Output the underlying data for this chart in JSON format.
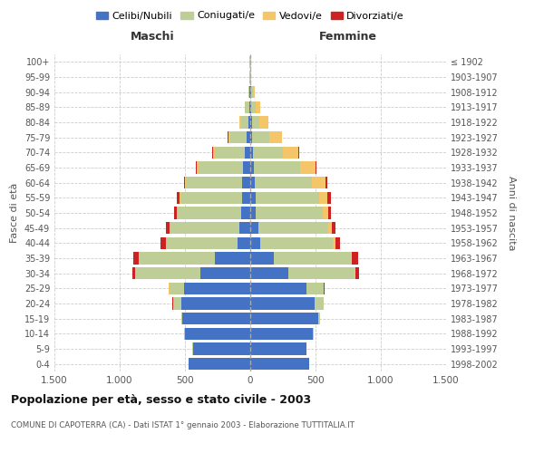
{
  "age_groups": [
    "0-4",
    "5-9",
    "10-14",
    "15-19",
    "20-24",
    "25-29",
    "30-34",
    "35-39",
    "40-44",
    "45-49",
    "50-54",
    "55-59",
    "60-64",
    "65-69",
    "70-74",
    "75-79",
    "80-84",
    "85-89",
    "90-94",
    "95-99",
    "100+"
  ],
  "birth_years": [
    "1998-2002",
    "1993-1997",
    "1988-1992",
    "1983-1987",
    "1978-1982",
    "1973-1977",
    "1968-1972",
    "1963-1967",
    "1958-1962",
    "1953-1957",
    "1948-1952",
    "1943-1947",
    "1938-1942",
    "1933-1937",
    "1928-1932",
    "1923-1927",
    "1918-1922",
    "1913-1917",
    "1908-1912",
    "1903-1907",
    "≤ 1902"
  ],
  "males": {
    "celibi": [
      470,
      440,
      500,
      520,
      530,
      510,
      380,
      270,
      100,
      85,
      70,
      65,
      60,
      55,
      40,
      25,
      15,
      10,
      5,
      2,
      2
    ],
    "coniugati": [
      2,
      2,
      5,
      10,
      60,
      110,
      500,
      580,
      540,
      530,
      490,
      470,
      430,
      340,
      230,
      130,
      55,
      30,
      10,
      3,
      2
    ],
    "vedovi": [
      0,
      0,
      0,
      0,
      2,
      2,
      3,
      5,
      5,
      5,
      5,
      5,
      10,
      15,
      15,
      15,
      10,
      5,
      2,
      0,
      0
    ],
    "divorziati": [
      0,
      0,
      0,
      0,
      2,
      5,
      20,
      40,
      40,
      25,
      20,
      20,
      10,
      5,
      5,
      5,
      2,
      0,
      0,
      0,
      0
    ]
  },
  "females": {
    "nubili": [
      450,
      430,
      480,
      520,
      490,
      430,
      290,
      180,
      75,
      60,
      45,
      40,
      35,
      30,
      20,
      15,
      12,
      8,
      5,
      2,
      2
    ],
    "coniugate": [
      2,
      3,
      8,
      15,
      70,
      130,
      510,
      590,
      560,
      540,
      510,
      490,
      440,
      350,
      230,
      130,
      60,
      35,
      15,
      3,
      2
    ],
    "vedove": [
      0,
      0,
      0,
      0,
      2,
      3,
      5,
      10,
      15,
      25,
      40,
      60,
      100,
      120,
      120,
      95,
      65,
      35,
      15,
      3,
      2
    ],
    "divorziate": [
      0,
      0,
      0,
      0,
      3,
      5,
      25,
      45,
      40,
      30,
      25,
      25,
      15,
      8,
      5,
      3,
      2,
      0,
      0,
      0,
      0
    ]
  },
  "colors": {
    "celibi_nubili": "#4472C4",
    "coniugati": "#BFCD96",
    "vedovi": "#F5C56A",
    "divorziati": "#CC2222"
  },
  "xlim": 1500,
  "title": "Popolazione per età, sesso e stato civile - 2003",
  "subtitle": "COMUNE DI CAPOTERRA (CA) - Dati ISTAT 1° gennaio 2003 - Elaborazione TUTTITALIA.IT",
  "xlabel_left": "Maschi",
  "xlabel_right": "Femmine",
  "ylabel_left": "Fasce di età",
  "ylabel_right": "Anni di nascita",
  "legend_labels": [
    "Celibi/Nubili",
    "Coniugati/e",
    "Vedovi/e",
    "Divorziati/e"
  ],
  "xticks": [
    -1500,
    -1000,
    -500,
    0,
    500,
    1000,
    1500
  ],
  "xticklabels": [
    "1.500",
    "1.000",
    "500",
    "0",
    "500",
    "1.000",
    "1.500"
  ],
  "background_color": "#ffffff",
  "grid_color": "#cccccc"
}
